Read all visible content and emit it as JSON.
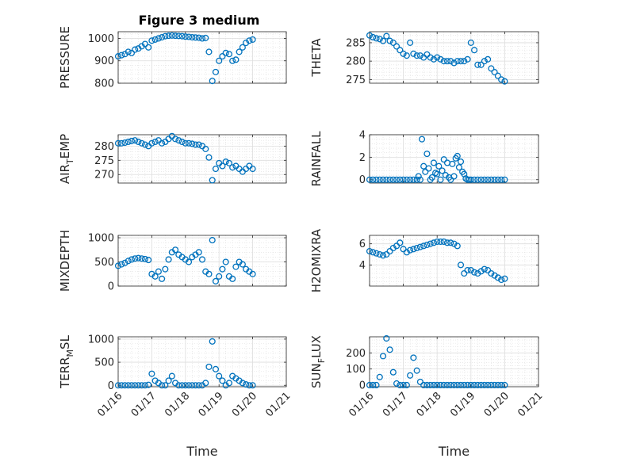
{
  "figure": {
    "title": "Figure 3 medium"
  },
  "style": {
    "marker_color": "#0072bd",
    "axis_color": "#262626",
    "grid_color": "#dedede"
  },
  "chart_data": [
    {
      "type": "scatter",
      "ylabel_main": "PRESSURE",
      "ylabel_sub": "",
      "ylabel_tail": "",
      "xlabel": "",
      "xlim": [
        0,
        5
      ],
      "ylim": [
        800,
        1030
      ],
      "yticks": [
        800,
        900,
        1000
      ],
      "xticks": [
        0,
        1,
        2,
        3,
        4,
        5
      ],
      "xticklabels": [
        "01/16",
        "01/17",
        "01/18",
        "01/19",
        "01/20",
        "01/21"
      ],
      "show_xticklabels": false,
      "grid": true,
      "marker": "open-circle",
      "x": [
        0.0,
        0.1,
        0.2,
        0.3,
        0.4,
        0.5,
        0.6,
        0.7,
        0.8,
        0.9,
        1.0,
        1.1,
        1.2,
        1.3,
        1.4,
        1.5,
        1.6,
        1.7,
        1.8,
        1.9,
        2.0,
        2.1,
        2.2,
        2.3,
        2.4,
        2.5,
        2.6,
        2.7,
        2.8,
        2.9,
        3.0,
        3.1,
        3.2,
        3.3,
        3.4,
        3.5,
        3.6,
        3.7,
        3.8,
        3.9,
        4.0
      ],
      "y": [
        920,
        925,
        930,
        940,
        935,
        950,
        955,
        965,
        975,
        960,
        990,
        995,
        1000,
        1005,
        1010,
        1012,
        1013,
        1012,
        1011,
        1010,
        1008,
        1007,
        1005,
        1004,
        1003,
        1000,
        1002,
        940,
        810,
        850,
        900,
        920,
        935,
        930,
        900,
        905,
        940,
        960,
        980,
        990,
        995
      ]
    },
    {
      "type": "scatter",
      "ylabel_main": "THETA",
      "ylabel_sub": "",
      "ylabel_tail": "",
      "xlabel": "",
      "xlim": [
        0,
        5
      ],
      "ylim": [
        274,
        288
      ],
      "yticks": [
        275,
        280,
        285
      ],
      "xticks": [
        0,
        1,
        2,
        3,
        4,
        5
      ],
      "xticklabels": [
        "01/16",
        "01/17",
        "01/18",
        "01/19",
        "01/20",
        "01/21"
      ],
      "show_xticklabels": false,
      "grid": true,
      "marker": "open-circle",
      "x": [
        0.0,
        0.1,
        0.2,
        0.3,
        0.4,
        0.5,
        0.6,
        0.7,
        0.8,
        0.9,
        1.0,
        1.1,
        1.2,
        1.3,
        1.4,
        1.5,
        1.6,
        1.7,
        1.8,
        1.9,
        2.0,
        2.1,
        2.2,
        2.3,
        2.4,
        2.5,
        2.6,
        2.7,
        2.8,
        2.9,
        3.0,
        3.1,
        3.2,
        3.3,
        3.4,
        3.5,
        3.6,
        3.7,
        3.8,
        3.9,
        4.0
      ],
      "y": [
        287,
        286.5,
        286.2,
        286,
        285.5,
        286.8,
        285.5,
        285,
        284,
        283,
        282,
        281.5,
        285,
        282,
        281.5,
        281.5,
        281,
        281.8,
        281,
        280.5,
        281,
        280.5,
        280,
        280,
        280,
        279.5,
        280,
        280,
        280,
        280.5,
        285,
        283,
        279,
        279,
        280,
        280.5,
        278,
        277,
        276,
        275,
        274.5
      ]
    },
    {
      "type": "scatter",
      "ylabel_main": "AIR",
      "ylabel_sub": "T",
      "ylabel_tail": "EMP",
      "xlabel": "",
      "xlim": [
        0,
        5
      ],
      "ylim": [
        267,
        284
      ],
      "yticks": [
        270,
        275,
        280
      ],
      "xticks": [
        0,
        1,
        2,
        3,
        4,
        5
      ],
      "xticklabels": [
        "01/16",
        "01/17",
        "01/18",
        "01/19",
        "01/20",
        "01/21"
      ],
      "show_xticklabels": false,
      "grid": true,
      "marker": "open-circle",
      "x": [
        0.0,
        0.1,
        0.2,
        0.3,
        0.4,
        0.5,
        0.6,
        0.7,
        0.8,
        0.9,
        1.0,
        1.1,
        1.2,
        1.3,
        1.4,
        1.5,
        1.6,
        1.7,
        1.8,
        1.9,
        2.0,
        2.1,
        2.2,
        2.3,
        2.4,
        2.5,
        2.6,
        2.7,
        2.8,
        2.9,
        3.0,
        3.1,
        3.2,
        3.3,
        3.4,
        3.5,
        3.6,
        3.7,
        3.8,
        3.9,
        4.0
      ],
      "y": [
        281,
        281,
        281.2,
        281.5,
        281.8,
        282,
        281.5,
        281,
        280.5,
        280,
        281,
        281.5,
        282,
        281,
        281.5,
        282.5,
        283.5,
        282.5,
        282,
        281.5,
        281,
        281,
        280.8,
        280.5,
        280.5,
        280,
        279,
        276,
        268,
        272,
        274,
        273,
        274.5,
        274,
        272.5,
        273,
        272,
        271,
        272,
        273,
        272
      ]
    },
    {
      "type": "scatter",
      "ylabel_main": "RAINFALL",
      "ylabel_sub": "",
      "ylabel_tail": "",
      "xlabel": "",
      "xlim": [
        0,
        5
      ],
      "ylim": [
        -0.3,
        4
      ],
      "yticks": [
        0,
        2,
        4
      ],
      "xticks": [
        0,
        1,
        2,
        3,
        4,
        5
      ],
      "xticklabels": [
        "01/16",
        "01/17",
        "01/18",
        "01/19",
        "01/20",
        "01/21"
      ],
      "show_xticklabels": false,
      "grid": true,
      "marker": "open-circle",
      "x": [
        0.0,
        0.1,
        0.2,
        0.3,
        0.4,
        0.5,
        0.6,
        0.7,
        0.8,
        0.9,
        1.0,
        1.1,
        1.2,
        1.3,
        1.4,
        1.5,
        1.6,
        1.7,
        1.8,
        1.9,
        2.0,
        2.1,
        2.2,
        2.3,
        2.4,
        2.5,
        2.6,
        2.7,
        2.8,
        2.9,
        3.0,
        3.1,
        3.2,
        3.3,
        3.4,
        3.5,
        3.6,
        3.7,
        3.8,
        3.9,
        4.0,
        1.45,
        1.55,
        1.65,
        1.75,
        1.85,
        1.95,
        2.05,
        2.15,
        2.25,
        2.35,
        2.45,
        2.55,
        2.65,
        2.75,
        2.85,
        2.95
      ],
      "y": [
        0,
        0,
        0,
        0,
        0,
        0,
        0,
        0,
        0,
        0,
        0,
        0,
        0,
        0,
        0,
        0,
        1.2,
        2.3,
        0,
        1.5,
        0.5,
        0,
        1.8,
        1.5,
        0,
        0.3,
        2.1,
        1.6,
        0.5,
        0,
        0,
        0,
        0,
        0,
        0,
        0,
        0,
        0,
        0,
        0,
        0,
        0.3,
        3.6,
        0.7,
        1.0,
        0.2,
        0.6,
        1.2,
        0.8,
        0.4,
        0.2,
        1.4,
        1.9,
        1.1,
        0.7,
        0.1,
        0
      ]
    },
    {
      "type": "scatter",
      "ylabel_main": "MIXDEPTH",
      "ylabel_sub": "",
      "ylabel_tail": "",
      "xlabel": "",
      "xlim": [
        0,
        5
      ],
      "ylim": [
        0,
        1050
      ],
      "yticks": [
        0,
        500,
        1000
      ],
      "xticks": [
        0,
        1,
        2,
        3,
        4,
        5
      ],
      "xticklabels": [
        "01/16",
        "01/17",
        "01/18",
        "01/19",
        "01/20",
        "01/21"
      ],
      "show_xticklabels": false,
      "grid": true,
      "marker": "open-circle",
      "x": [
        0.0,
        0.1,
        0.2,
        0.3,
        0.4,
        0.5,
        0.6,
        0.7,
        0.8,
        0.9,
        1.0,
        1.1,
        1.2,
        1.3,
        1.4,
        1.5,
        1.6,
        1.7,
        1.8,
        1.9,
        2.0,
        2.1,
        2.2,
        2.3,
        2.4,
        2.5,
        2.6,
        2.7,
        2.8,
        2.9,
        3.0,
        3.1,
        3.2,
        3.3,
        3.4,
        3.5,
        3.6,
        3.7,
        3.8,
        3.9,
        4.0
      ],
      "y": [
        420,
        450,
        480,
        520,
        550,
        570,
        580,
        570,
        560,
        540,
        250,
        200,
        300,
        150,
        350,
        550,
        700,
        750,
        650,
        600,
        550,
        500,
        600,
        650,
        700,
        550,
        300,
        250,
        950,
        100,
        200,
        350,
        500,
        200,
        150,
        400,
        500,
        450,
        350,
        300,
        250
      ]
    },
    {
      "type": "scatter",
      "ylabel_main": "H2OMIXRA",
      "ylabel_sub": "",
      "ylabel_tail": "",
      "xlabel": "",
      "xlim": [
        0,
        5
      ],
      "ylim": [
        2,
        6.8
      ],
      "yticks": [
        4,
        6
      ],
      "xticks": [
        0,
        1,
        2,
        3,
        4,
        5
      ],
      "xticklabels": [
        "01/16",
        "01/17",
        "01/18",
        "01/19",
        "01/20",
        "01/21"
      ],
      "show_xticklabels": false,
      "grid": true,
      "marker": "open-circle",
      "x": [
        0.0,
        0.1,
        0.2,
        0.3,
        0.4,
        0.5,
        0.6,
        0.7,
        0.8,
        0.9,
        1.0,
        1.1,
        1.2,
        1.3,
        1.4,
        1.5,
        1.6,
        1.7,
        1.8,
        1.9,
        2.0,
        2.1,
        2.2,
        2.3,
        2.4,
        2.5,
        2.6,
        2.7,
        2.8,
        2.9,
        3.0,
        3.1,
        3.2,
        3.3,
        3.4,
        3.5,
        3.6,
        3.7,
        3.8,
        3.9,
        4.0
      ],
      "y": [
        5.3,
        5.2,
        5.1,
        5.0,
        4.9,
        5.0,
        5.3,
        5.6,
        5.8,
        6.1,
        5.5,
        5.2,
        5.4,
        5.5,
        5.6,
        5.7,
        5.8,
        5.9,
        6.0,
        6.1,
        6.2,
        6.2,
        6.2,
        6.1,
        6.1,
        6.0,
        5.8,
        4.0,
        3.2,
        3.5,
        3.5,
        3.3,
        3.2,
        3.4,
        3.6,
        3.5,
        3.2,
        3.0,
        2.8,
        2.6,
        2.7
      ]
    },
    {
      "type": "scatter",
      "ylabel_main": "TERR",
      "ylabel_sub": "M",
      "ylabel_tail": "SL",
      "xlabel": "Time",
      "xlim": [
        0,
        5
      ],
      "ylim": [
        -30,
        1050
      ],
      "yticks": [
        0,
        500,
        1000
      ],
      "xticks": [
        0,
        1,
        2,
        3,
        4,
        5
      ],
      "xticklabels": [
        "01/16",
        "01/17",
        "01/18",
        "01/19",
        "01/20",
        "01/21"
      ],
      "show_xticklabels": true,
      "grid": true,
      "marker": "open-circle",
      "x": [
        0.0,
        0.1,
        0.2,
        0.3,
        0.4,
        0.5,
        0.6,
        0.7,
        0.8,
        0.9,
        1.0,
        1.1,
        1.2,
        1.3,
        1.4,
        1.5,
        1.6,
        1.7,
        1.8,
        1.9,
        2.0,
        2.1,
        2.2,
        2.3,
        2.4,
        2.5,
        2.6,
        2.7,
        2.8,
        2.9,
        3.0,
        3.1,
        3.2,
        3.3,
        3.4,
        3.5,
        3.6,
        3.7,
        3.8,
        3.9,
        4.0
      ],
      "y": [
        0,
        0,
        0,
        0,
        0,
        0,
        0,
        0,
        0,
        10,
        250,
        100,
        50,
        0,
        0,
        100,
        200,
        50,
        0,
        0,
        0,
        0,
        0,
        0,
        0,
        0,
        50,
        400,
        950,
        350,
        200,
        100,
        0,
        50,
        200,
        150,
        100,
        50,
        20,
        0,
        0
      ]
    },
    {
      "type": "scatter",
      "ylabel_main": "SUN",
      "ylabel_sub": "F",
      "ylabel_tail": "LUX",
      "xlabel": "Time",
      "xlim": [
        0,
        5
      ],
      "ylim": [
        -10,
        300
      ],
      "yticks": [
        0,
        100,
        200
      ],
      "xticks": [
        0,
        1,
        2,
        3,
        4,
        5
      ],
      "xticklabels": [
        "01/16",
        "01/17",
        "01/18",
        "01/19",
        "01/20",
        "01/21"
      ],
      "show_xticklabels": true,
      "grid": true,
      "marker": "open-circle",
      "x": [
        0.0,
        0.1,
        0.2,
        0.3,
        0.4,
        0.5,
        0.6,
        0.7,
        0.8,
        0.9,
        1.0,
        1.1,
        1.2,
        1.3,
        1.4,
        1.5,
        1.6,
        1.7,
        1.8,
        1.9,
        2.0,
        2.1,
        2.2,
        2.3,
        2.4,
        2.5,
        2.6,
        2.7,
        2.8,
        2.9,
        3.0,
        3.1,
        3.2,
        3.3,
        3.4,
        3.5,
        3.6,
        3.7,
        3.8,
        3.9,
        4.0
      ],
      "y": [
        0,
        0,
        0,
        50,
        180,
        290,
        220,
        80,
        10,
        0,
        0,
        0,
        60,
        170,
        90,
        20,
        0,
        0,
        0,
        0,
        0,
        0,
        0,
        0,
        0,
        0,
        0,
        0,
        0,
        0,
        0,
        0,
        0,
        0,
        0,
        0,
        0,
        0,
        0,
        0,
        0
      ]
    }
  ]
}
